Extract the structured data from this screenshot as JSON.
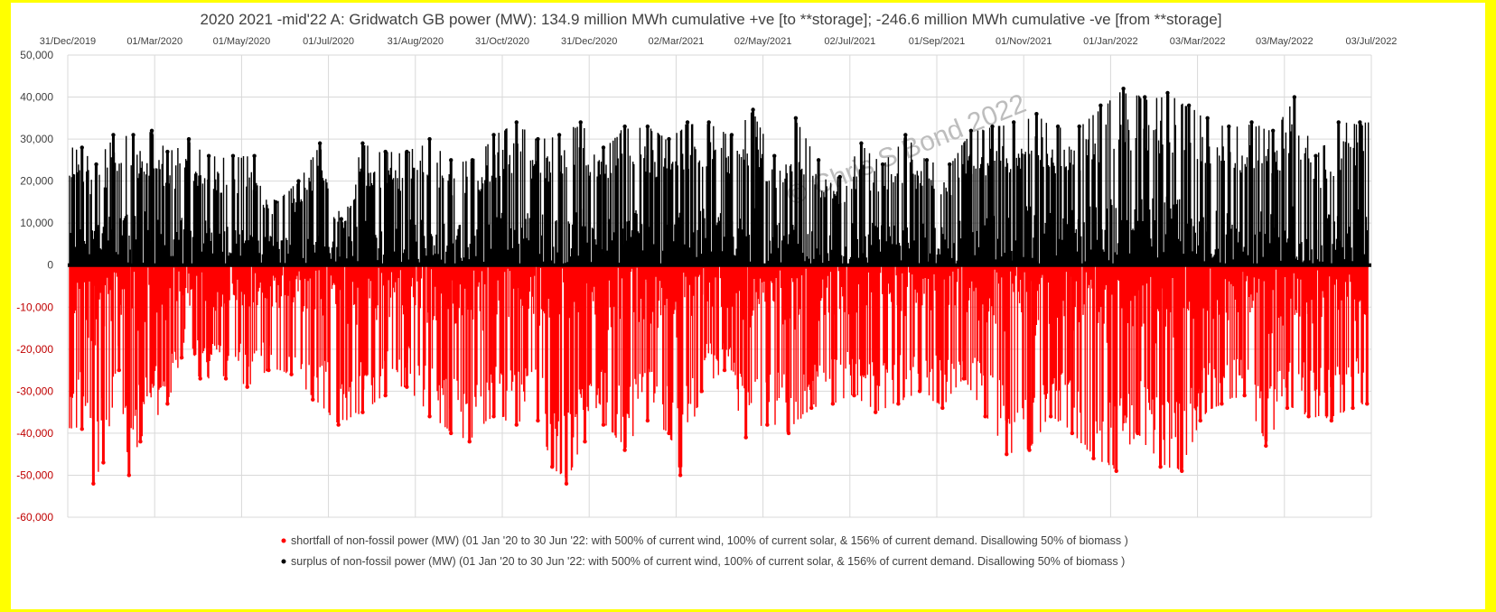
{
  "chart_data": {
    "type": "scatter",
    "title": "2020 2021 -mid'22 A:  Gridwatch GB power (MW): 134.9 million MWh cumulative +ve [to **storage]; -246.6 million MWh cumulative -ve [from **storage]",
    "xlabel": "",
    "ylabel": "",
    "x_axis_position": "top",
    "x_range": [
      "31/Dec/2019",
      "03/Jul/2022"
    ],
    "x_tick_labels": [
      "31/Dec/2019",
      "01/Mar/2020",
      "01/May/2020",
      "01/Jul/2020",
      "31/Aug/2020",
      "31/Oct/2020",
      "31/Dec/2020",
      "02/Mar/2021",
      "02/May/2021",
      "02/Jul/2021",
      "01/Sep/2021",
      "01/Nov/2021",
      "01/Jan/2022",
      "03/Mar/2022",
      "03/May/2022",
      "03/Jul/2022"
    ],
    "ylim": [
      -60000,
      50000
    ],
    "y_tick_values": [
      50000,
      40000,
      30000,
      20000,
      10000,
      0,
      -10000,
      -20000,
      -30000,
      -40000,
      -50000,
      -60000
    ],
    "y_tick_labels": [
      "50,000",
      "40,000",
      "30,000",
      "20,000",
      "10,000",
      "0",
      "-10,000",
      "-20,000",
      "-30,000",
      "-40,000",
      "-50,000",
      "-60,000"
    ],
    "grid": true,
    "legend_position": "bottom",
    "watermark": "© Chris S Bond  2022",
    "colors": {
      "surplus": "#000000",
      "shortfall": "#ff0000",
      "negative_tick": "#c00000",
      "positive_tick": "#404040"
    },
    "series": [
      {
        "name": "shortfall of non-fossil power (MW) (01 Jan '20 to 30 Jun '22:  with 500% of current wind, 100% of current solar, & 156% of current demand.  Disallowing 50% of biomass )",
        "color": "#ff0000",
        "x_dates": [
          "2020-01-10",
          "2020-01-18",
          "2020-01-25",
          "2020-02-05",
          "2020-02-12",
          "2020-02-20",
          "2020-03-10",
          "2020-03-20",
          "2020-04-02",
          "2020-04-20",
          "2020-05-05",
          "2020-05-20",
          "2020-06-05",
          "2020-06-20",
          "2020-07-08",
          "2020-07-25",
          "2020-08-10",
          "2020-08-25",
          "2020-09-10",
          "2020-09-25",
          "2020-10-08",
          "2020-10-25",
          "2020-11-10",
          "2020-11-25",
          "2020-12-05",
          "2020-12-15",
          "2020-12-28",
          "2021-01-10",
          "2021-01-25",
          "2021-02-10",
          "2021-02-25",
          "2021-03-05",
          "2021-03-20",
          "2021-04-05",
          "2021-04-20",
          "2021-05-05",
          "2021-05-20",
          "2021-06-05",
          "2021-06-20",
          "2021-07-05",
          "2021-07-20",
          "2021-08-05",
          "2021-08-20",
          "2021-09-05",
          "2021-09-20",
          "2021-10-05",
          "2021-10-20",
          "2021-11-05",
          "2021-11-20",
          "2021-12-05",
          "2021-12-20",
          "2022-01-05",
          "2022-01-20",
          "2022-02-05",
          "2022-02-20",
          "2022-03-05",
          "2022-03-20",
          "2022-04-05",
          "2022-04-20",
          "2022-05-05",
          "2022-05-20",
          "2022-06-05",
          "2022-06-20",
          "2022-06-30"
        ],
        "y": [
          -39000,
          -52000,
          -47000,
          -25000,
          -50000,
          -42000,
          -33000,
          -22000,
          -27000,
          -27000,
          -29000,
          -25000,
          -26000,
          -32000,
          -38000,
          -35000,
          -31000,
          -29000,
          -36000,
          -40000,
          -42000,
          -36000,
          -38000,
          -37000,
          -48000,
          -52000,
          -42000,
          -38000,
          -44000,
          -37000,
          -40000,
          -50000,
          -30000,
          -25000,
          -41000,
          -38000,
          -40000,
          -34000,
          -33000,
          -31000,
          -35000,
          -33000,
          -30000,
          -34000,
          -27000,
          -36000,
          -45000,
          -44000,
          -36000,
          -40000,
          -46000,
          -49000,
          -40000,
          -48000,
          -49000,
          -37000,
          -33000,
          -31000,
          -43000,
          -34000,
          -36000,
          -37000,
          -34000,
          -33000
        ]
      },
      {
        "name": "surplus of non-fossil power (MW) (01 Jan '20 to 30 Jun '22:  with 500% of current wind, 100% of current solar, & 156% of current demand.  Disallowing 50% of biomass )",
        "color": "#000000",
        "x_dates": [
          "2020-01-10",
          "2020-01-20",
          "2020-02-01",
          "2020-02-15",
          "2020-02-28",
          "2020-03-10",
          "2020-03-25",
          "2020-04-08",
          "2020-04-25",
          "2020-05-10",
          "2020-05-25",
          "2020-06-10",
          "2020-06-25",
          "2020-07-10",
          "2020-07-25",
          "2020-08-10",
          "2020-08-25",
          "2020-09-10",
          "2020-09-25",
          "2020-10-10",
          "2020-10-25",
          "2020-11-10",
          "2020-11-25",
          "2020-12-10",
          "2020-12-25",
          "2021-01-10",
          "2021-01-25",
          "2021-02-10",
          "2021-02-25",
          "2021-03-10",
          "2021-03-25",
          "2021-04-10",
          "2021-04-25",
          "2021-05-10",
          "2021-05-25",
          "2021-06-10",
          "2021-06-25",
          "2021-07-10",
          "2021-07-25",
          "2021-08-10",
          "2021-08-25",
          "2021-09-10",
          "2021-09-25",
          "2021-10-10",
          "2021-10-25",
          "2021-11-10",
          "2021-11-25",
          "2021-12-10",
          "2021-12-25",
          "2022-01-10",
          "2022-01-25",
          "2022-02-10",
          "2022-02-25",
          "2022-03-10",
          "2022-03-25",
          "2022-04-10",
          "2022-04-25",
          "2022-05-10",
          "2022-05-25",
          "2022-06-10",
          "2022-06-25"
        ],
        "y": [
          28000,
          24000,
          31000,
          31000,
          32000,
          27000,
          30000,
          26000,
          26000,
          26000,
          15000,
          20000,
          29000,
          11000,
          29000,
          27000,
          27000,
          30000,
          25000,
          25000,
          31000,
          34000,
          30000,
          31000,
          34000,
          28000,
          33000,
          33000,
          30000,
          34000,
          34000,
          31000,
          37000,
          26000,
          35000,
          25000,
          21000,
          29000,
          24000,
          31000,
          25000,
          24000,
          32000,
          33000,
          34000,
          36000,
          33000,
          33000,
          38000,
          42000,
          40000,
          41000,
          38000,
          35000,
          33000,
          34000,
          32000,
          40000,
          26000,
          34000,
          34000
        ]
      }
    ]
  }
}
